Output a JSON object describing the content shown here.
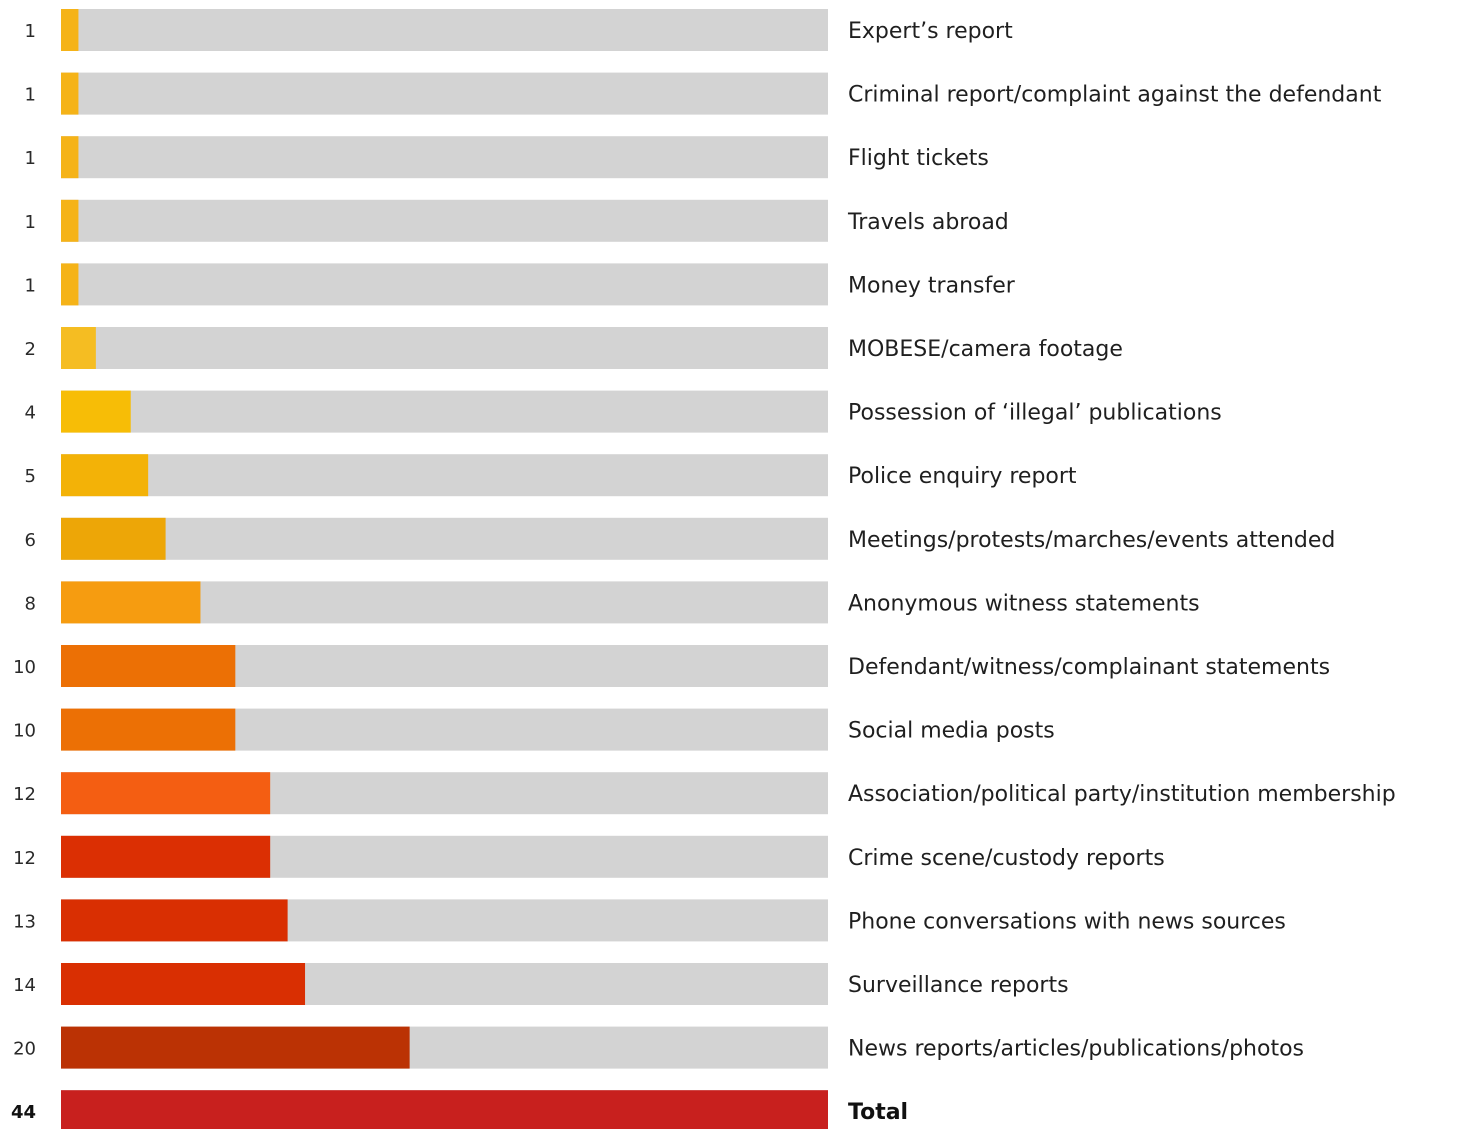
{
  "chart_data": {
    "type": "bar",
    "orientation": "horizontal",
    "title": "",
    "xlabel": "",
    "ylabel": "",
    "xlim": [
      0,
      44
    ],
    "grid": false,
    "legend": "none",
    "max_value": 44,
    "track_color": "#d3d3d3",
    "categories": [
      "Expert’s report",
      "Criminal report/complaint against the defendant",
      "Flight tickets",
      "Travels abroad",
      "Money transfer",
      "MOBESE/camera footage",
      "Possession of ‘illegal’ publications",
      "Police enquiry report",
      "Meetings/protests/marches/events attended",
      "Anonymous witness statements",
      "Defendant/witness/complainant statements",
      "Social media posts",
      "Association/political party/institution membership",
      "Crime scene/custody reports",
      "Phone conversations with news sources",
      "Surveillance reports",
      "News reports/articles/publications/photos",
      "Total"
    ],
    "values": [
      1,
      1,
      1,
      1,
      1,
      2,
      4,
      5,
      6,
      8,
      10,
      10,
      12,
      12,
      13,
      14,
      20,
      44
    ],
    "bar_colors": [
      "#f5b318",
      "#f5b318",
      "#f5b318",
      "#f5b318",
      "#f5b318",
      "#f5bd22",
      "#f7bd06",
      "#f3b207",
      "#eda607",
      "#f69c10",
      "#ec7005",
      "#ec7005",
      "#f45e12",
      "#db2f03",
      "#d92f02",
      "#d92f02",
      "#bb3204",
      "#c8201e"
    ],
    "emphasized": [
      "Total"
    ]
  }
}
